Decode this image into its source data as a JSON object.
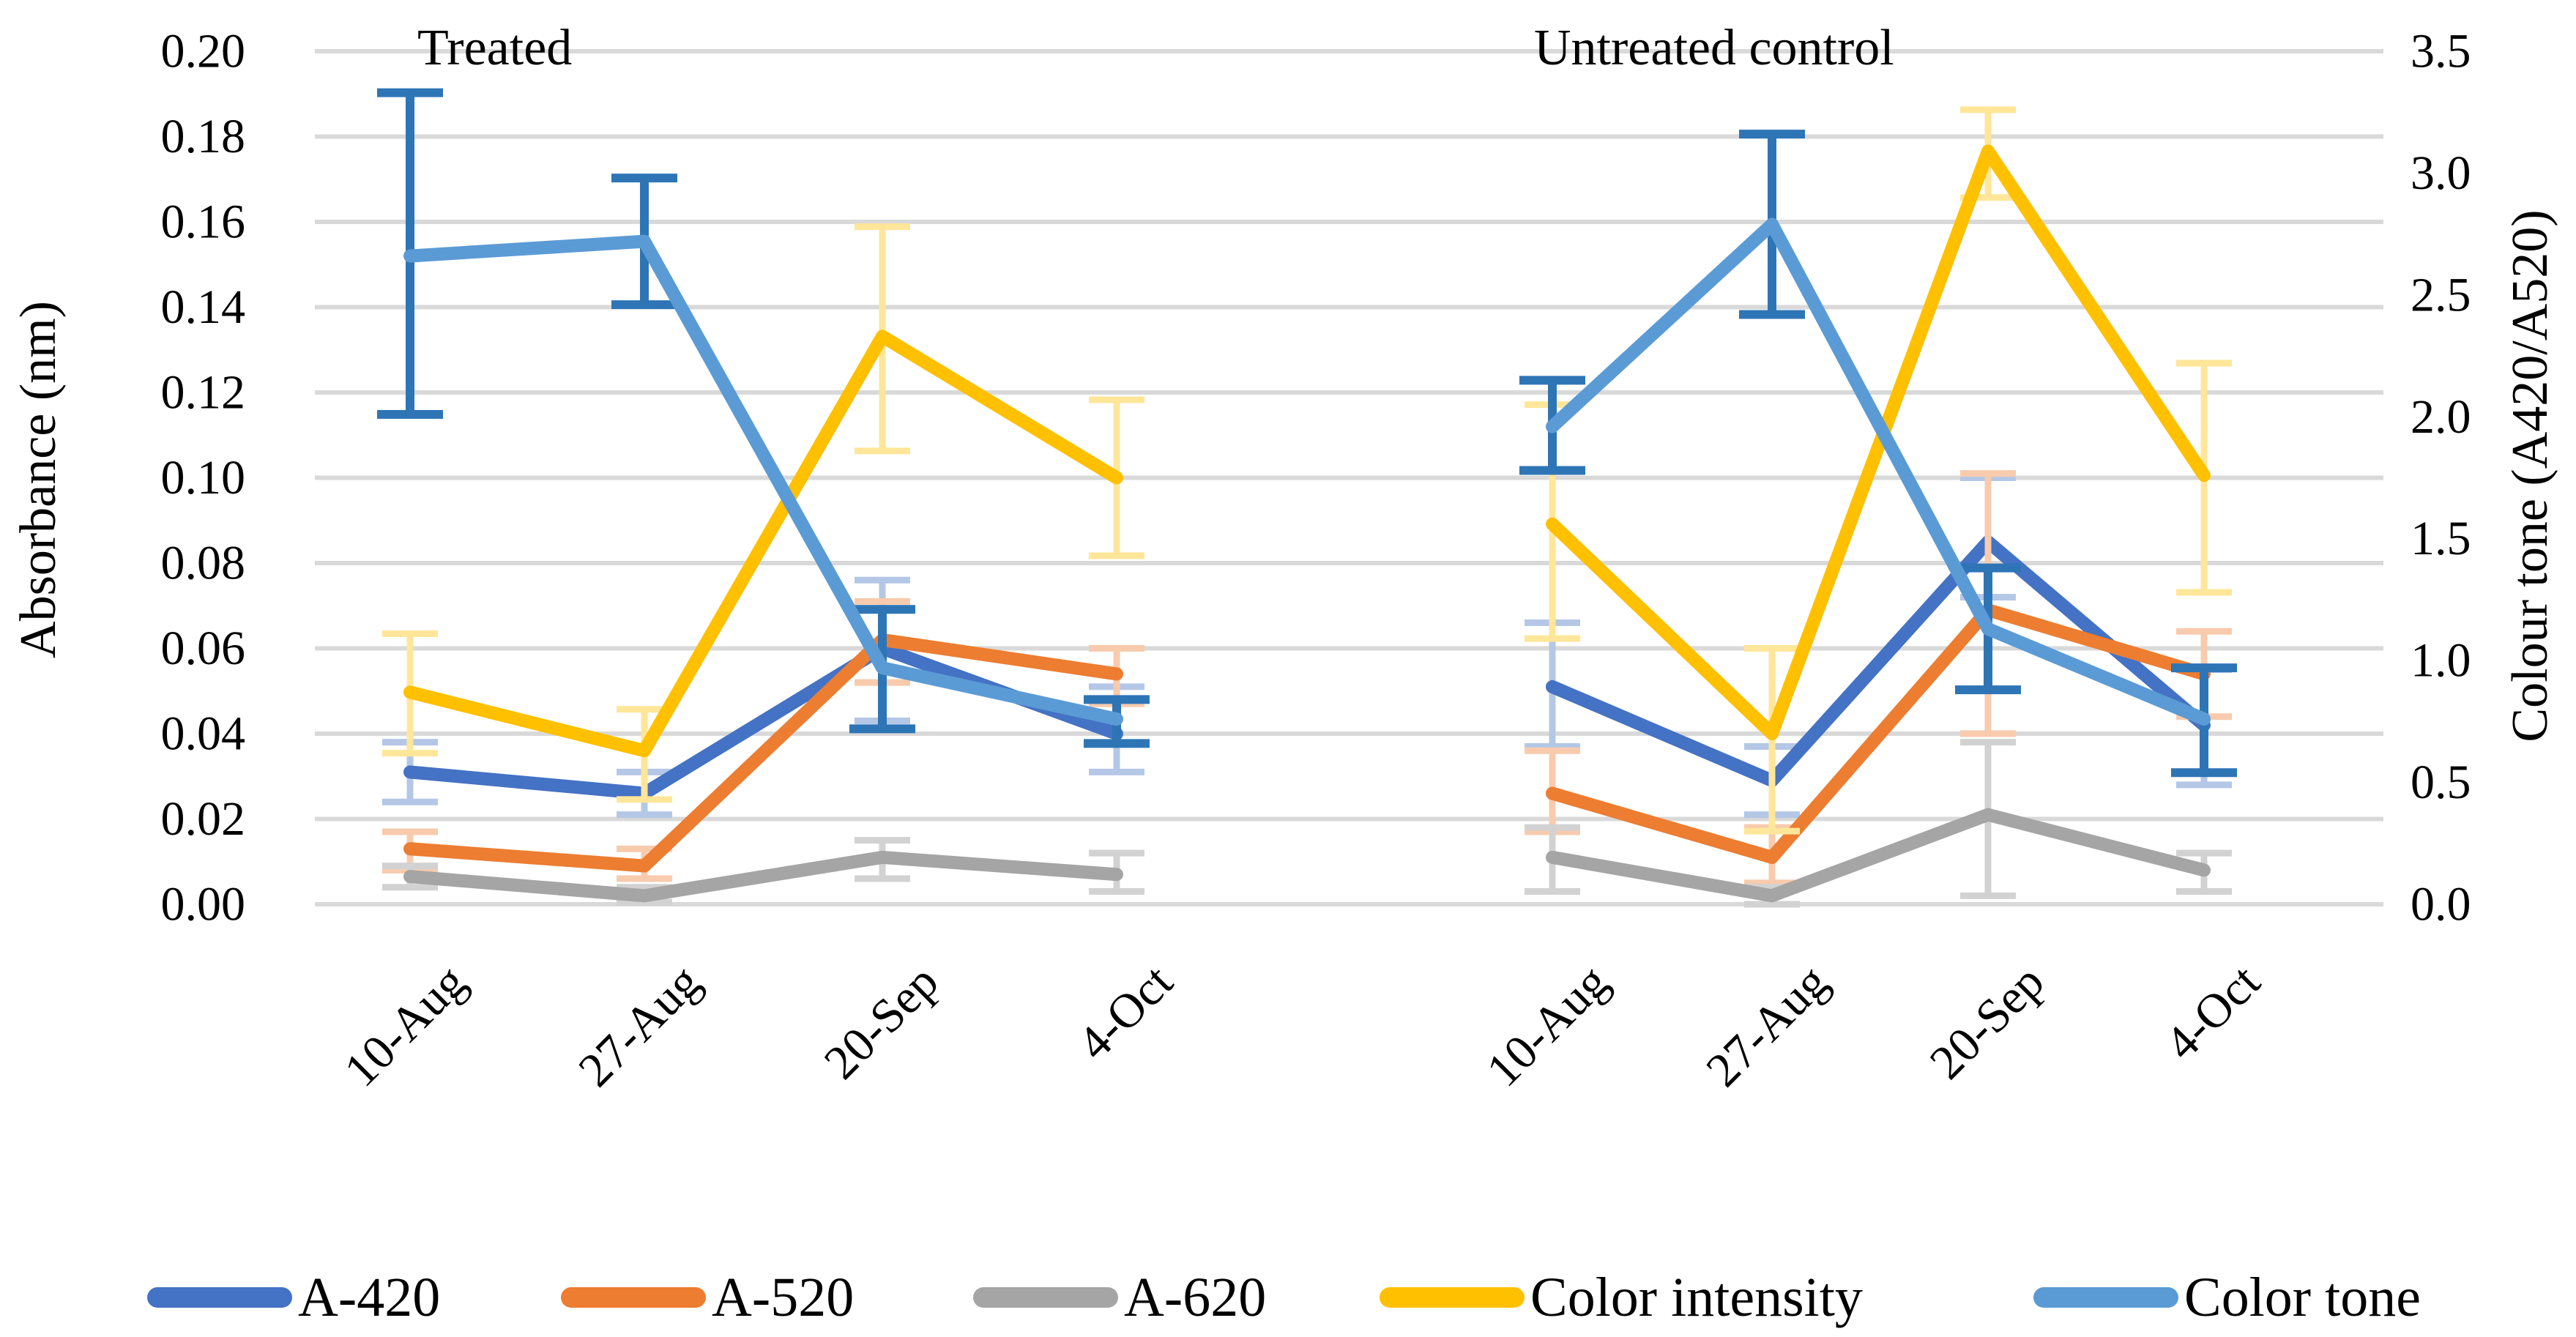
{
  "chart_data": {
    "type": "line",
    "categories": [
      "10-Aug",
      "27-Aug",
      "20-Sep",
      "4-Oct"
    ],
    "left_axis": {
      "label": "Absorbance (nm)",
      "min": 0.0,
      "max": 0.2,
      "step": 0.02,
      "ticks": [
        "0.00",
        "0.02",
        "0.04",
        "0.06",
        "0.08",
        "0.10",
        "0.12",
        "0.14",
        "0.16",
        "0.18",
        "0.20"
      ]
    },
    "right_axis": {
      "label": "Colour tone (A420/A520)",
      "min": 0.0,
      "max": 3.5,
      "step": 0.5,
      "ticks": [
        "0.0",
        "0.5",
        "1.0",
        "1.5",
        "2.0",
        "2.5",
        "3.0",
        "3.5"
      ]
    },
    "grid": "horizontal",
    "grid_color": "#D9D9D9",
    "legend_position": "bottom",
    "series_styles": {
      "A-420": {
        "line": "#4472C4",
        "error": "#B4C7E7"
      },
      "A-520": {
        "line": "#ED7D31",
        "error": "#F8CBAD"
      },
      "A-620": {
        "line": "#A5A5A5",
        "error": "#D2D2D2"
      },
      "Color intensity": {
        "line": "#FFC000",
        "error": "#FFE699"
      },
      "Color tone": {
        "line": "#5B9BD5",
        "error": "#2E75B6"
      }
    },
    "legend": [
      {
        "label": "A-420",
        "color": "#4472C4"
      },
      {
        "label": "A-520",
        "color": "#ED7D31"
      },
      {
        "label": "A-620",
        "color": "#A5A5A5"
      },
      {
        "label": "Color intensity",
        "color": "#FFC000"
      },
      {
        "label": "Color tone",
        "color": "#5B9BD5"
      }
    ],
    "panels": [
      {
        "title": "Treated",
        "series": [
          {
            "name": "A-420",
            "axis": "left",
            "values": [
              0.031,
              0.026,
              0.06,
              0.04
            ],
            "err_lo": [
              0.024,
              0.021,
              0.043,
              0.031
            ],
            "err_hi": [
              0.038,
              0.031,
              0.076,
              0.051
            ]
          },
          {
            "name": "A-520",
            "axis": "left",
            "values": [
              0.013,
              0.009,
              0.062,
              0.054
            ],
            "err_lo": [
              0.008,
              0.006,
              0.052,
              0.047
            ],
            "err_hi": [
              0.017,
              0.013,
              0.071,
              0.06
            ]
          },
          {
            "name": "A-620",
            "axis": "left",
            "values": [
              0.0065,
              0.002,
              0.011,
              0.007
            ],
            "err_lo": [
              0.004,
              0.0005,
              0.006,
              0.003
            ],
            "err_hi": [
              0.009,
              0.004,
              0.015,
              0.012
            ]
          },
          {
            "name": "Color intensity",
            "axis": "right",
            "values": [
              0.87,
              0.63,
              2.33,
              1.75
            ],
            "err_lo": [
              0.62,
              0.43,
              1.86,
              1.43
            ],
            "err_hi": [
              1.11,
              0.8,
              2.78,
              2.07
            ]
          },
          {
            "name": "Color tone",
            "axis": "right",
            "values": [
              2.66,
              2.72,
              0.97,
              0.76
            ],
            "err_lo": [
              2.01,
              2.46,
              0.72,
              0.66
            ],
            "err_hi": [
              3.33,
              2.98,
              1.21,
              0.84
            ]
          }
        ]
      },
      {
        "title": "Untreated control",
        "series": [
          {
            "name": "A-420",
            "axis": "left",
            "values": [
              0.051,
              0.029,
              0.085,
              0.042
            ],
            "err_lo": [
              0.037,
              0.021,
              0.072,
              0.028
            ],
            "err_hi": [
              0.066,
              0.037,
              0.1,
              0.055
            ]
          },
          {
            "name": "A-520",
            "axis": "left",
            "values": [
              0.026,
              0.011,
              0.069,
              0.054
            ],
            "err_lo": [
              0.017,
              0.005,
              0.04,
              0.044
            ],
            "err_hi": [
              0.036,
              0.018,
              0.101,
              0.064
            ]
          },
          {
            "name": "A-620",
            "axis": "left",
            "values": [
              0.011,
              0.002,
              0.021,
              0.008
            ],
            "err_lo": [
              0.003,
              0.0,
              0.002,
              0.003
            ],
            "err_hi": [
              0.018,
              0.004,
              0.038,
              0.012
            ]
          },
          {
            "name": "Color intensity",
            "axis": "right",
            "values": [
              1.56,
              0.7,
              3.09,
              1.76
            ],
            "err_lo": [
              1.09,
              0.3,
              2.9,
              1.28
            ],
            "err_hi": [
              2.05,
              1.05,
              3.26,
              2.22
            ]
          },
          {
            "name": "Color tone",
            "axis": "right",
            "values": [
              1.96,
              2.79,
              1.13,
              0.76
            ],
            "err_lo": [
              1.78,
              2.42,
              0.88,
              0.54
            ],
            "err_hi": [
              2.15,
              3.16,
              1.38,
              0.97
            ]
          }
        ]
      }
    ]
  }
}
